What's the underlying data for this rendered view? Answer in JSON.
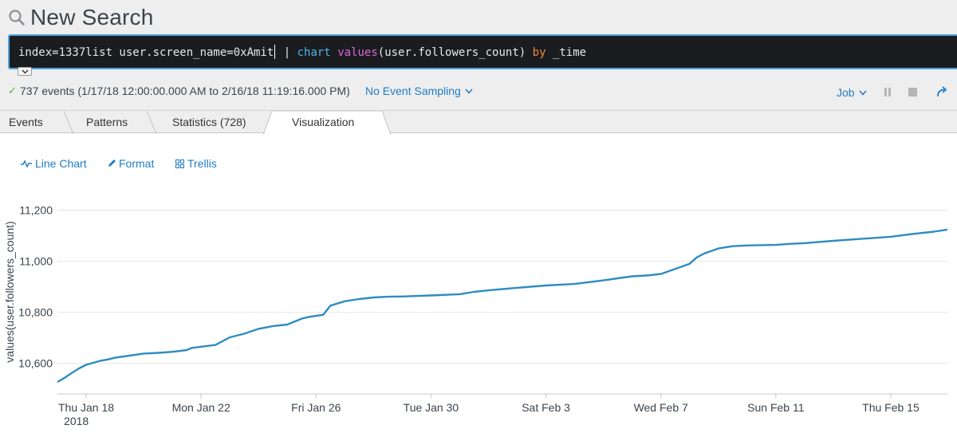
{
  "search": {
    "title": "New Search",
    "query": {
      "base": "index=1337list user.screen_name=0xAmit",
      "pipe": " | ",
      "command": "chart",
      "function": "values",
      "args": "(user.followers_count) ",
      "keyword": "by",
      "field": " _time"
    }
  },
  "status": {
    "summary": "737 events (1/17/18 12:00:00.000 AM to 2/16/18 11:19:16.000 PM)",
    "sampling": "No Event Sampling",
    "job": "Job"
  },
  "tabs": [
    {
      "label": "Events"
    },
    {
      "label": "Patterns"
    },
    {
      "label": "Statistics (728)"
    },
    {
      "label": "Visualization"
    }
  ],
  "active_tab": "Visualization",
  "toolbar": {
    "line_chart": "Line Chart",
    "format": "Format",
    "trellis": "Trellis"
  },
  "colors": {
    "line": "#2e8cc2",
    "link": "#1e7cc8",
    "query_command": "#4fb3ea",
    "query_function": "#d96ad6",
    "query_keyword": "#f08a3b"
  },
  "chart_data": {
    "type": "line",
    "ylabel": "values(user.followers_count)",
    "ylim": [
      10480,
      11280
    ],
    "yticks": [
      10600,
      10800,
      11000,
      11200
    ],
    "ytick_labels": [
      "10,600",
      "10,800",
      "11,000",
      "11,200"
    ],
    "xlim": [
      "2018-01-17T00:00",
      "2018-02-16T23:19"
    ],
    "xticks": [
      "2018-01-18",
      "2018-01-22",
      "2018-01-26",
      "2018-01-30",
      "2018-02-03",
      "2018-02-07",
      "2018-02-11",
      "2018-02-15"
    ],
    "xtick_labels": [
      "Thu Jan 18",
      "Mon Jan 22",
      "Fri Jan 26",
      "Tue Jan 30",
      "Sat Feb 3",
      "Wed Feb 7",
      "Sun Feb 11",
      "Thu Feb 15"
    ],
    "xtick_sublabel": "2018",
    "grid": true,
    "series": [
      {
        "x": [
          "2018-01-17T00:00",
          "2018-01-17T06:00",
          "2018-01-17T12:00",
          "2018-01-17T18:00",
          "2018-01-18T00:00",
          "2018-01-18T06:00",
          "2018-01-18T12:00",
          "2018-01-18T18:00",
          "2018-01-19T00:00",
          "2018-01-19T12:00",
          "2018-01-20T00:00",
          "2018-01-20T12:00",
          "2018-01-21T00:00",
          "2018-01-21T12:00",
          "2018-01-21T16:00",
          "2018-01-22T00:00",
          "2018-01-22T12:00",
          "2018-01-23T00:00",
          "2018-01-23T12:00",
          "2018-01-24T00:00",
          "2018-01-24T12:00",
          "2018-01-25T00:00",
          "2018-01-25T12:00",
          "2018-01-25T18:00",
          "2018-01-26T00:00",
          "2018-01-26T06:00",
          "2018-01-26T12:00",
          "2018-01-27T00:00",
          "2018-01-27T12:00",
          "2018-01-28T00:00",
          "2018-01-28T12:00",
          "2018-01-29T00:00",
          "2018-01-30T00:00",
          "2018-01-31T00:00",
          "2018-01-31T12:00",
          "2018-02-01T00:00",
          "2018-02-02T00:00",
          "2018-02-03T00:00",
          "2018-02-04T00:00",
          "2018-02-04T12:00",
          "2018-02-05T00:00",
          "2018-02-05T12:00",
          "2018-02-06T00:00",
          "2018-02-06T12:00",
          "2018-02-07T00:00",
          "2018-02-07T12:00",
          "2018-02-08T00:00",
          "2018-02-08T06:00",
          "2018-02-08T12:00",
          "2018-02-09T00:00",
          "2018-02-09T12:00",
          "2018-02-10T00:00",
          "2018-02-11T00:00",
          "2018-02-11T12:00",
          "2018-02-12T00:00",
          "2018-02-13T00:00",
          "2018-02-14T00:00",
          "2018-02-15T00:00",
          "2018-02-15T12:00",
          "2018-02-16T00:00",
          "2018-02-16T12:00",
          "2018-02-16T23:19"
        ],
        "values": [
          10527,
          10543,
          10562,
          10580,
          10594,
          10602,
          10610,
          10615,
          10622,
          10630,
          10638,
          10641,
          10645,
          10652,
          10660,
          10665,
          10672,
          10702,
          10716,
          10735,
          10746,
          10752,
          10775,
          10782,
          10786,
          10790,
          10826,
          10843,
          10852,
          10858,
          10861,
          10862,
          10866,
          10871,
          10880,
          10886,
          10896,
          10905,
          10911,
          10918,
          10925,
          10933,
          10941,
          10944,
          10950,
          10970,
          10990,
          11015,
          11030,
          11050,
          11059,
          11062,
          11064,
          11068,
          11071,
          11080,
          11088,
          11096,
          11103,
          11110,
          11116,
          11124
        ]
      }
    ]
  }
}
